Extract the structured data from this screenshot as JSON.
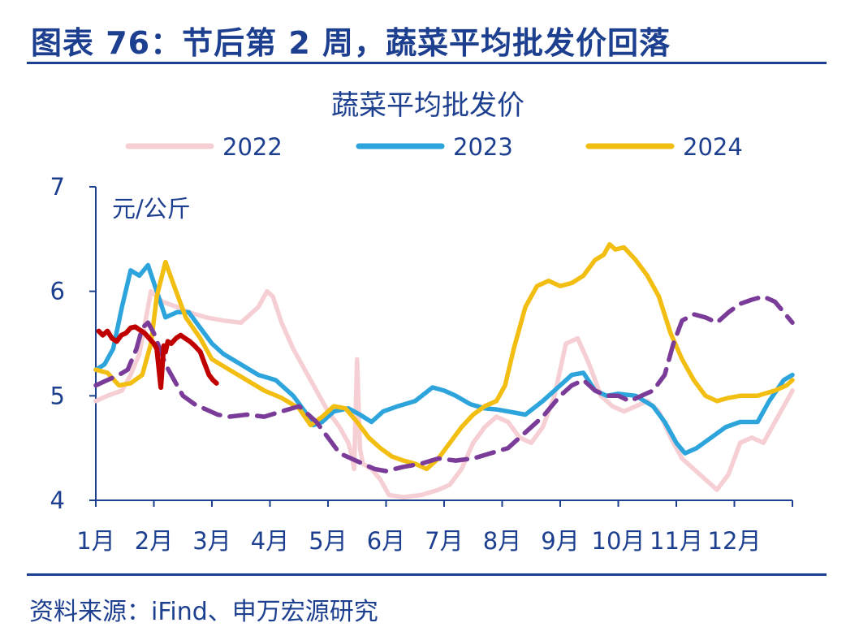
{
  "header": {
    "title": "图表 76：节后第 2 周，蔬菜平均批发价回落"
  },
  "source": "资料来源：iFind、申万宏源研究",
  "colors": {
    "2022": "#f5cfd3",
    "2023": "#2da5dc",
    "2024": "#f3be12",
    "2025": "#7a3c98",
    "current": "#c00000",
    "axis": "#1d3f8f"
  },
  "chart_data": {
    "type": "line",
    "title": "蔬菜平均批发价",
    "unit": "元/公斤",
    "ylim": [
      4,
      7
    ],
    "yticks": [
      4,
      5,
      6,
      7
    ],
    "xlim": [
      1,
      13
    ],
    "xticks": [
      {
        "pos": 1,
        "label": "1月"
      },
      {
        "pos": 2,
        "label": "2月"
      },
      {
        "pos": 3,
        "label": "3月"
      },
      {
        "pos": 4,
        "label": "4月"
      },
      {
        "pos": 5,
        "label": "5月"
      },
      {
        "pos": 6,
        "label": "6月"
      },
      {
        "pos": 7,
        "label": "7月"
      },
      {
        "pos": 8,
        "label": "8月"
      },
      {
        "pos": 9,
        "label": "9月"
      },
      {
        "pos": 10,
        "label": "10月"
      },
      {
        "pos": 11,
        "label": "11月"
      },
      {
        "pos": 12,
        "label": "12月"
      }
    ],
    "legend": [
      {
        "name": "2022",
        "color": "#f5cfd3"
      },
      {
        "name": "2023",
        "color": "#2da5dc"
      },
      {
        "name": "2024",
        "color": "#f3be12"
      }
    ],
    "series": [
      {
        "name": "2022",
        "color": "#f5cfd3",
        "dash": false,
        "x": [
          1.0,
          1.2,
          1.45,
          1.6,
          1.75,
          1.85,
          1.95,
          2.15,
          2.4,
          2.6,
          2.9,
          3.2,
          3.5,
          3.8,
          3.95,
          4.05,
          4.2,
          4.4,
          4.6,
          4.85,
          5.0,
          5.2,
          5.35,
          5.4,
          5.45,
          5.5,
          5.55,
          5.6,
          5.75,
          5.9,
          6.05,
          6.3,
          6.6,
          6.9,
          7.1,
          7.3,
          7.5,
          7.7,
          7.9,
          8.1,
          8.3,
          8.5,
          8.7,
          8.9,
          9.1,
          9.3,
          9.5,
          9.7,
          9.9,
          10.1,
          10.3,
          10.5,
          10.7,
          10.9,
          11.1,
          11.3,
          11.5,
          11.7,
          11.9,
          12.1,
          12.3,
          12.5,
          12.7,
          12.9,
          13.0
        ],
        "y": [
          4.95,
          5.0,
          5.05,
          5.2,
          5.4,
          5.7,
          6.0,
          5.9,
          5.85,
          5.8,
          5.75,
          5.72,
          5.7,
          5.85,
          6.0,
          5.95,
          5.7,
          5.45,
          5.25,
          5.0,
          4.85,
          4.7,
          4.55,
          4.45,
          4.3,
          5.35,
          4.5,
          4.35,
          4.3,
          4.2,
          4.05,
          4.03,
          4.05,
          4.1,
          4.15,
          4.3,
          4.55,
          4.7,
          4.8,
          4.75,
          4.6,
          4.55,
          4.7,
          5.0,
          5.5,
          5.55,
          5.3,
          5.0,
          4.9,
          4.85,
          4.9,
          4.95,
          4.85,
          4.6,
          4.4,
          4.3,
          4.2,
          4.1,
          4.25,
          4.55,
          4.6,
          4.55,
          4.75,
          4.95,
          5.05
        ]
      },
      {
        "name": "2023",
        "color": "#2da5dc",
        "dash": false,
        "x": [
          1.0,
          1.15,
          1.3,
          1.45,
          1.6,
          1.75,
          1.9,
          2.05,
          2.2,
          2.4,
          2.6,
          2.8,
          3.0,
          3.2,
          3.5,
          3.8,
          4.1,
          4.4,
          4.6,
          4.75,
          4.9,
          5.1,
          5.35,
          5.55,
          5.75,
          5.95,
          6.2,
          6.5,
          6.8,
          7.0,
          7.2,
          7.45,
          7.7,
          7.9,
          8.1,
          8.4,
          8.7,
          9.0,
          9.2,
          9.4,
          9.6,
          9.8,
          10.0,
          10.3,
          10.6,
          10.8,
          11.0,
          11.15,
          11.35,
          11.6,
          11.85,
          12.1,
          12.4,
          12.6,
          12.85,
          13.0
        ],
        "y": [
          5.25,
          5.3,
          5.45,
          5.85,
          6.2,
          6.15,
          6.25,
          6.0,
          5.75,
          5.8,
          5.8,
          5.65,
          5.5,
          5.4,
          5.3,
          5.2,
          5.15,
          5.0,
          4.85,
          4.72,
          4.75,
          4.85,
          4.88,
          4.82,
          4.75,
          4.85,
          4.9,
          4.95,
          5.08,
          5.05,
          5.0,
          4.92,
          4.88,
          4.87,
          4.85,
          4.82,
          4.95,
          5.1,
          5.2,
          5.22,
          5.05,
          5.0,
          5.02,
          5.0,
          4.9,
          4.75,
          4.55,
          4.45,
          4.5,
          4.6,
          4.7,
          4.75,
          4.75,
          4.95,
          5.15,
          5.2
        ]
      },
      {
        "name": "2024",
        "color": "#f3be12",
        "dash": false,
        "x": [
          1.0,
          1.2,
          1.4,
          1.6,
          1.8,
          1.95,
          2.05,
          2.2,
          2.35,
          2.55,
          2.8,
          3.0,
          3.3,
          3.6,
          3.9,
          4.2,
          4.5,
          4.7,
          4.9,
          5.1,
          5.3,
          5.5,
          5.7,
          5.9,
          6.1,
          6.3,
          6.5,
          6.7,
          6.9,
          7.1,
          7.3,
          7.5,
          7.7,
          7.9,
          8.05,
          8.2,
          8.4,
          8.6,
          8.8,
          9.0,
          9.2,
          9.4,
          9.6,
          9.75,
          9.85,
          9.95,
          10.1,
          10.3,
          10.5,
          10.7,
          10.9,
          11.1,
          11.3,
          11.5,
          11.7,
          11.9,
          12.1,
          12.4,
          12.7,
          12.9,
          13.0
        ],
        "y": [
          5.25,
          5.22,
          5.1,
          5.12,
          5.2,
          5.5,
          5.95,
          6.28,
          6.05,
          5.75,
          5.55,
          5.35,
          5.25,
          5.15,
          5.05,
          4.98,
          4.88,
          4.72,
          4.8,
          4.9,
          4.88,
          4.75,
          4.6,
          4.5,
          4.42,
          4.38,
          4.35,
          4.3,
          4.4,
          4.55,
          4.7,
          4.82,
          4.9,
          4.95,
          5.1,
          5.45,
          5.85,
          6.05,
          6.1,
          6.05,
          6.08,
          6.15,
          6.3,
          6.35,
          6.45,
          6.4,
          6.42,
          6.3,
          6.15,
          5.95,
          5.6,
          5.35,
          5.15,
          5.0,
          4.95,
          4.98,
          5.0,
          5.0,
          5.05,
          5.1,
          5.15
        ]
      },
      {
        "name": "2025",
        "color": "#7a3c98",
        "dash": true,
        "x": [
          1.0,
          1.2,
          1.4,
          1.55,
          1.7,
          1.8,
          1.9,
          2.0,
          2.1,
          2.2,
          2.35,
          2.5,
          2.7,
          2.9,
          3.1,
          3.3,
          3.6,
          3.9,
          4.2,
          4.5,
          4.8,
          5.0,
          5.2,
          5.4,
          5.6,
          5.8,
          6.0,
          6.3,
          6.6,
          6.9,
          7.2,
          7.5,
          7.8,
          8.1,
          8.4,
          8.7,
          9.0,
          9.2,
          9.4,
          9.6,
          9.8,
          10.0,
          10.2,
          10.4,
          10.6,
          10.8,
          10.95,
          11.1,
          11.3,
          11.5,
          11.7,
          11.9,
          12.1,
          12.3,
          12.5,
          12.7,
          12.85,
          13.0
        ],
        "y": [
          5.1,
          5.15,
          5.2,
          5.25,
          5.45,
          5.65,
          5.7,
          5.6,
          5.45,
          5.3,
          5.15,
          5.0,
          4.92,
          4.87,
          4.82,
          4.8,
          4.82,
          4.8,
          4.85,
          4.9,
          4.75,
          4.6,
          4.45,
          4.4,
          4.35,
          4.3,
          4.28,
          4.32,
          4.35,
          4.4,
          4.38,
          4.4,
          4.45,
          4.5,
          4.65,
          4.8,
          5.0,
          5.1,
          5.15,
          5.05,
          5.0,
          5.0,
          4.95,
          5.0,
          5.05,
          5.2,
          5.5,
          5.72,
          5.78,
          5.75,
          5.7,
          5.8,
          5.88,
          5.92,
          5.95,
          5.9,
          5.8,
          5.7
        ]
      },
      {
        "name": "2025-current",
        "color": "#c00000",
        "dash": false,
        "x": [
          1.05,
          1.12,
          1.2,
          1.28,
          1.36,
          1.44,
          1.52,
          1.6,
          1.68,
          1.76,
          1.84,
          1.92,
          2.0,
          2.05,
          2.12,
          2.17,
          2.2,
          2.24,
          2.3,
          2.38,
          2.46,
          2.54,
          2.62,
          2.7,
          2.8,
          2.88,
          2.95,
          3.02,
          3.08
        ],
        "y": [
          5.62,
          5.58,
          5.62,
          5.55,
          5.52,
          5.58,
          5.6,
          5.65,
          5.66,
          5.63,
          5.6,
          5.55,
          5.5,
          5.45,
          5.08,
          5.48,
          5.42,
          5.52,
          5.5,
          5.55,
          5.58,
          5.55,
          5.52,
          5.48,
          5.42,
          5.3,
          5.2,
          5.15,
          5.12
        ]
      }
    ]
  }
}
